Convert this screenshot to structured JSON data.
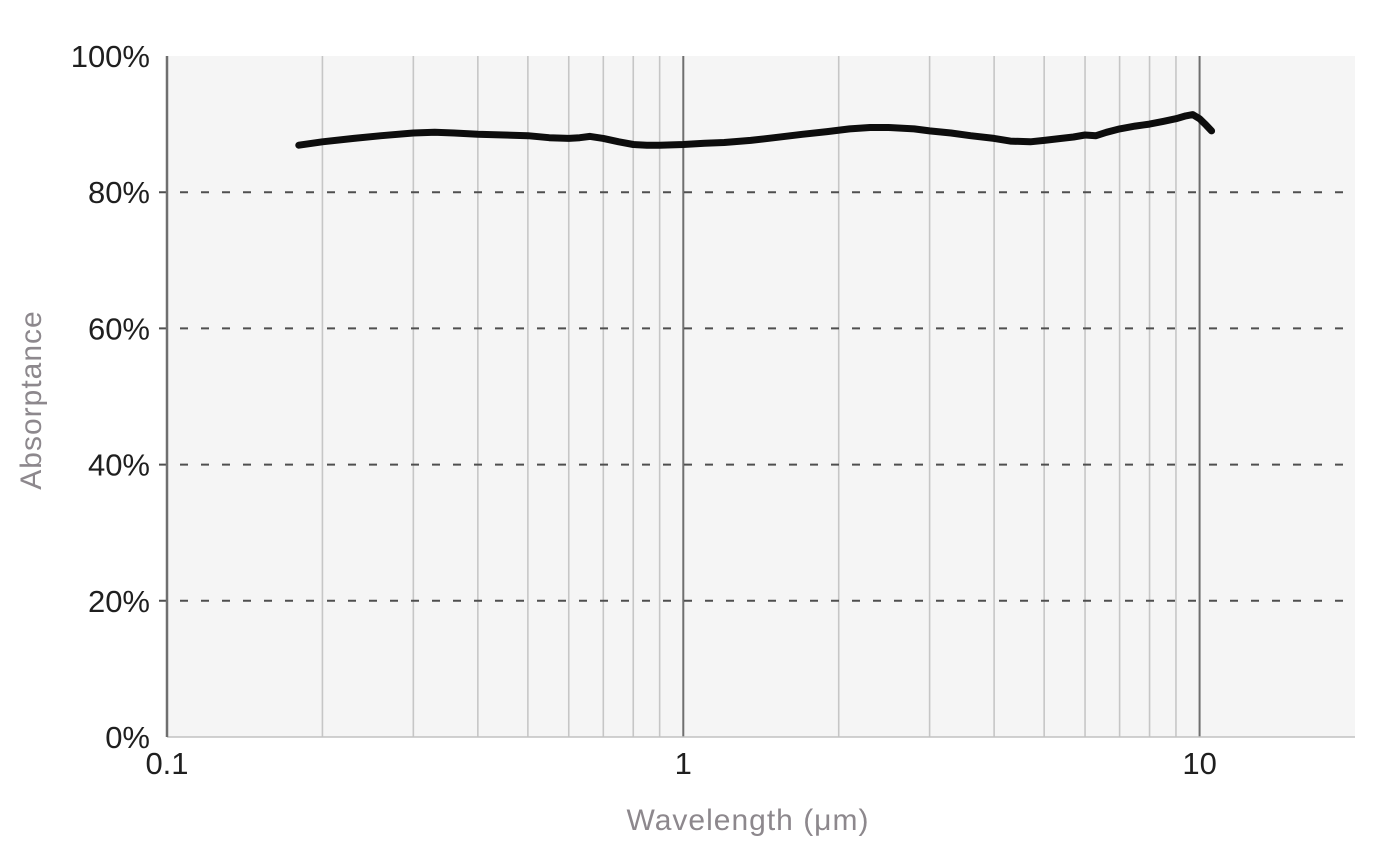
{
  "chart_data": {
    "type": "line",
    "title": "",
    "xlabel": "Wavelength (μm)",
    "ylabel": "Absorptance",
    "x_scale": "log",
    "x_range": [
      0.1,
      20
    ],
    "y_range": [
      0,
      100
    ],
    "grid": "on",
    "legend": "none",
    "x_ticks": [
      {
        "value": 0.1,
        "label": "0.1"
      },
      {
        "value": 1,
        "label": "1"
      },
      {
        "value": 10,
        "label": "10"
      }
    ],
    "y_ticks": [
      {
        "value": 0,
        "label": "0%"
      },
      {
        "value": 20,
        "label": "20%"
      },
      {
        "value": 40,
        "label": "40%"
      },
      {
        "value": 60,
        "label": "60%"
      },
      {
        "value": 80,
        "label": "80%"
      },
      {
        "value": 100,
        "label": "100%"
      }
    ],
    "minor_x_gridlines": [
      0.2,
      0.3,
      0.4,
      0.5,
      0.6,
      0.7,
      0.8,
      0.9,
      2,
      3,
      4,
      5,
      6,
      7,
      8,
      9
    ],
    "major_x_gridlines": [
      1,
      10
    ],
    "dashed_y_gridlines": [
      20,
      40,
      60,
      80
    ],
    "series": [
      {
        "name": "Absorptance",
        "color": "#0d0d0d",
        "points": [
          [
            0.18,
            86.9
          ],
          [
            0.2,
            87.4
          ],
          [
            0.23,
            87.9
          ],
          [
            0.26,
            88.3
          ],
          [
            0.3,
            88.7
          ],
          [
            0.33,
            88.8
          ],
          [
            0.36,
            88.7
          ],
          [
            0.4,
            88.5
          ],
          [
            0.45,
            88.4
          ],
          [
            0.5,
            88.3
          ],
          [
            0.55,
            88.0
          ],
          [
            0.6,
            87.9
          ],
          [
            0.63,
            88.0
          ],
          [
            0.66,
            88.2
          ],
          [
            0.7,
            87.9
          ],
          [
            0.75,
            87.4
          ],
          [
            0.8,
            87.0
          ],
          [
            0.85,
            86.9
          ],
          [
            0.9,
            86.9
          ],
          [
            1.0,
            87.0
          ],
          [
            1.1,
            87.2
          ],
          [
            1.2,
            87.3
          ],
          [
            1.35,
            87.6
          ],
          [
            1.5,
            88.0
          ],
          [
            1.7,
            88.5
          ],
          [
            1.9,
            88.9
          ],
          [
            2.1,
            89.3
          ],
          [
            2.3,
            89.5
          ],
          [
            2.5,
            89.5
          ],
          [
            2.8,
            89.3
          ],
          [
            3.0,
            89.0
          ],
          [
            3.3,
            88.7
          ],
          [
            3.6,
            88.3
          ],
          [
            4.0,
            87.9
          ],
          [
            4.3,
            87.5
          ],
          [
            4.7,
            87.4
          ],
          [
            5.0,
            87.6
          ],
          [
            5.4,
            87.9
          ],
          [
            5.7,
            88.1
          ],
          [
            6.0,
            88.4
          ],
          [
            6.3,
            88.3
          ],
          [
            6.6,
            88.8
          ],
          [
            7.0,
            89.3
          ],
          [
            7.5,
            89.7
          ],
          [
            8.0,
            90.0
          ],
          [
            8.5,
            90.4
          ],
          [
            9.0,
            90.8
          ],
          [
            9.4,
            91.2
          ],
          [
            9.7,
            91.4
          ],
          [
            10.0,
            90.8
          ],
          [
            10.25,
            90.0
          ],
          [
            10.55,
            89.0
          ]
        ]
      }
    ],
    "colors": {
      "plot_background": "#f5f5f5",
      "page_background": "#ffffff",
      "minor_gridline": "#c6c6c6",
      "major_gridline": "#6f6f6f",
      "axis_line": "#6f6f6f",
      "bottom_border": "#c2c2c2",
      "dashed_gridline": "#4f4f4f",
      "tick_label": "#1f1f1f",
      "axis_title": "#8d888d",
      "line": "#0d0d0d"
    }
  }
}
